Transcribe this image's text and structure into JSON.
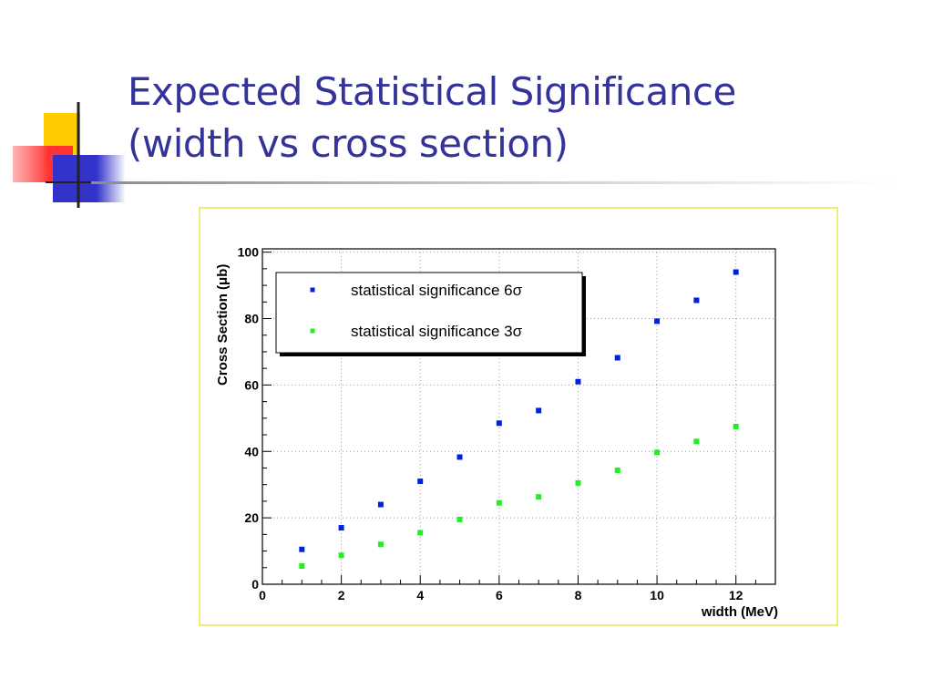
{
  "slide": {
    "title_line1": "Expected Statistical Significance",
    "title_line2": "(width vs cross section)"
  },
  "colors": {
    "title": "#333399",
    "series_6sigma": "#0022dd",
    "series_3sigma": "#22ee22",
    "frame_border": "#ecec7a",
    "deco_yellow": "#ffcc00",
    "deco_blue": "#3333cc",
    "deco_red": "#ff4444"
  },
  "chart_data": {
    "type": "scatter",
    "title": "",
    "xlabel": "width (MeV)",
    "ylabel": "Cross Section (μb)",
    "xlim": [
      0,
      13
    ],
    "ylim": [
      0,
      101
    ],
    "xticks": [
      0,
      2,
      4,
      6,
      8,
      10,
      12
    ],
    "yticks": [
      0,
      20,
      40,
      60,
      80,
      100
    ],
    "grid": true,
    "legend_position": "top-left",
    "series": [
      {
        "name": "statistical significance 6σ",
        "color": "#0022dd",
        "x": [
          1,
          2,
          3,
          4,
          5,
          6,
          7,
          8,
          9,
          10,
          11,
          12
        ],
        "y": [
          10.5,
          17,
          24,
          31,
          38.3,
          48.5,
          52.3,
          61,
          68.2,
          79.2,
          85.5,
          94
        ]
      },
      {
        "name": "statistical significance 3σ",
        "color": "#22ee22",
        "x": [
          1,
          2,
          3,
          4,
          5,
          6,
          7,
          8,
          9,
          10,
          11,
          12
        ],
        "y": [
          5.5,
          8.7,
          12,
          15.5,
          19.5,
          24.5,
          26.3,
          30.5,
          34.3,
          39.7,
          43,
          47.5
        ]
      }
    ]
  }
}
